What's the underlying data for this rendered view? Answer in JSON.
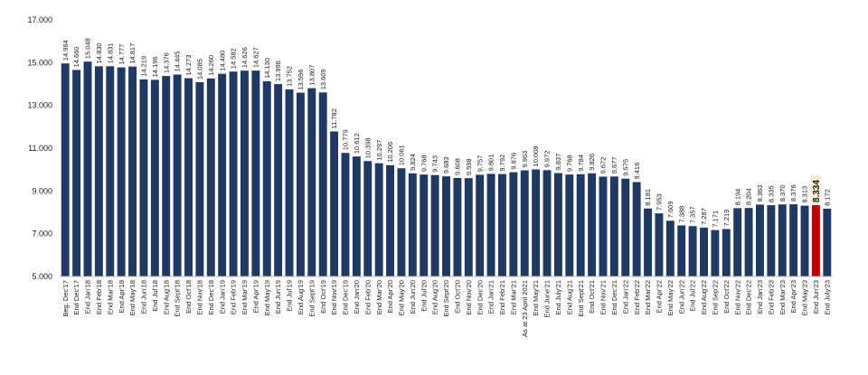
{
  "chart_data": {
    "type": "bar",
    "title": "",
    "xlabel": "",
    "ylabel": "",
    "ylim": [
      5000,
      17000
    ],
    "yticks": [
      5000,
      7000,
      9000,
      11000,
      13000,
      15000,
      17000
    ],
    "ytick_labels": [
      "5.000",
      "7.000",
      "9.000",
      "11.000",
      "13.000",
      "15.000",
      "17.000"
    ],
    "grid": false,
    "legend": "none",
    "colors": {
      "bar": "#1f3864",
      "highlight_bar": "#c00000",
      "highlight_label_bg": "#f5ecd5"
    },
    "highlight_index": 67,
    "categories": [
      "Beg. Dec'17",
      "End Dec'17",
      "End Jan'18",
      "End Feb'18",
      "End Mar'18",
      "End Apr'18",
      "End May'18",
      "End Jun'18",
      "End Jul'18",
      "End Aug'18",
      "End Sept'18",
      "End Oct'18",
      "End Nov'18",
      "End Dec'18",
      "End Jan'19",
      "End Feb'19",
      "End Mar'19",
      "End Apr'19",
      "End May'19",
      "End Jun'19",
      "End Jul'19",
      "End Aug'19",
      "End Sept'19",
      "End Oct'19",
      "End Nov'19",
      "End Dec'19",
      "End Jan'20",
      "End Feb'20",
      "End Mar'20",
      "End Apr'20",
      "End May'20",
      "End Jun'20",
      "End Jul'20",
      "End Aug'20",
      "End Sept'20",
      "End Oct'20",
      "End Nov'20",
      "End Dec'20",
      "End Jan'21",
      "End Feb'21",
      "End Mar'21",
      "As at 23 April 2021",
      "End May'21",
      "End June'21",
      "End July'21",
      "End Aug'21",
      "End Sept'21",
      "End Oct'21",
      "End Nov'21",
      "End Dec'21",
      "End Jan'22",
      "End Feb'22",
      "End Mar'22",
      "End Apr'22",
      "End May'22",
      "End Jun'22",
      "End Jul'22",
      "End Aug'22",
      "End Sep'22",
      "End Oct'22",
      "End Nov'22",
      "End Dec'22",
      "End Jan'23",
      "End Feb'23",
      "End Mar'23",
      "End Apr'23",
      "End May'23",
      "End Jun'23",
      "End July'23"
    ],
    "values": [
      14964,
      14660,
      15048,
      14830,
      14831,
      14777,
      14817,
      14219,
      14196,
      14376,
      14445,
      14273,
      14085,
      14260,
      14480,
      14582,
      14626,
      14627,
      14130,
      13996,
      13752,
      13596,
      13807,
      13609,
      11782,
      10779,
      10612,
      10398,
      10297,
      10206,
      10061,
      9824,
      9768,
      9743,
      9683,
      9608,
      9598,
      9757,
      9801,
      9792,
      9876,
      9963,
      10008,
      9972,
      9837,
      9768,
      9784,
      9826,
      9672,
      9677,
      9575,
      9416,
      8181,
      7953,
      7609,
      7388,
      7357,
      7287,
      7171,
      7219,
      8194,
      8204,
      8363,
      8335,
      8370,
      8376,
      8313,
      8334,
      8172
    ],
    "labels": [
      "14.964",
      "14.660",
      "15.048",
      "14.830",
      "14.831",
      "14.777",
      "14.817",
      "14.219",
      "14.196",
      "14.376",
      "14.445",
      "14.273",
      "14.085",
      "14.260",
      "14.480",
      "14.582",
      "14.626",
      "14.627",
      "14.130",
      "13.996",
      "13.752",
      "13.596",
      "13.807",
      "13.609",
      "11.782",
      "10.779",
      "10.612",
      "10.398",
      "10.297",
      "10.206",
      "10.061",
      "9.824",
      "9.768",
      "9.743",
      "9.683",
      "9.608",
      "9.598",
      "9.757",
      "9.801",
      "9.792",
      "9.876",
      "9.963",
      "10.008",
      "9.972",
      "9.837",
      "9.768",
      "9.784",
      "9.826",
      "9.672",
      "9.677",
      "9.575",
      "9.416",
      "8.181",
      "7.953",
      "7.609",
      "7.388",
      "7.357",
      "7.287",
      "7.171",
      "7.219",
      "8.194",
      "8.204",
      "8.363",
      "8.335",
      "8.370",
      "8.376",
      "8.313",
      "8.334",
      "8.172"
    ]
  }
}
